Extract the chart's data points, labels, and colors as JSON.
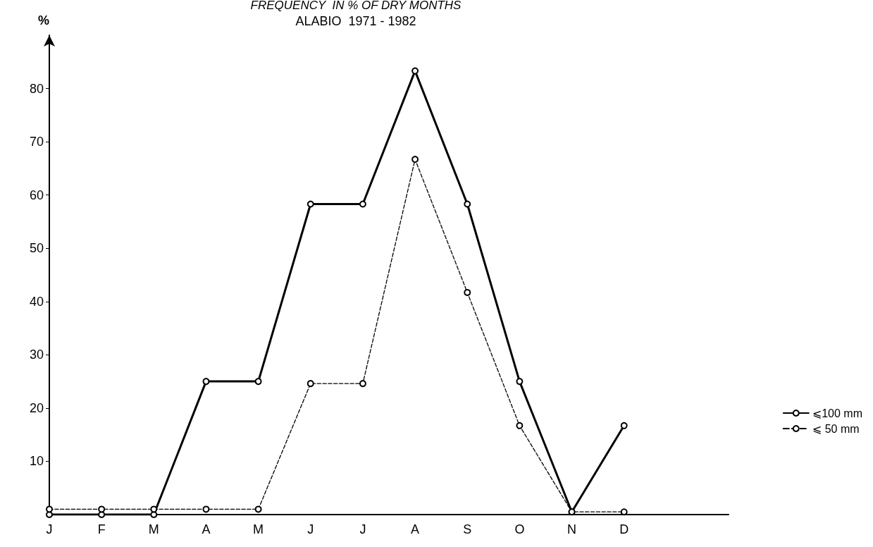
{
  "chart_data": {
    "type": "line",
    "title": "FREQUENCY  IN % OF DRY MONTHS",
    "subtitle": "ALABIO  1971 - 1982",
    "ylabel": "%",
    "categories": [
      "J",
      "F",
      "M",
      "A",
      "M",
      "J",
      "J",
      "A",
      "S",
      "O",
      "N",
      "D",
      null,
      null
    ],
    "series": [
      {
        "name": "⩽100 mm",
        "color": "#000000",
        "line_style": "solid",
        "values": [
          0,
          0,
          0,
          25,
          25,
          58.3,
          58.3,
          83.3,
          58.3,
          25,
          0.5,
          16.7,
          null,
          null
        ]
      },
      {
        "name": "⩽ 50 mm",
        "color": "#000000",
        "line_style": "dashed",
        "values": [
          1,
          1,
          1,
          1,
          1,
          24.6,
          24.6,
          66.7,
          41.7,
          16.7,
          0.5,
          0.5,
          null,
          null
        ]
      }
    ],
    "ylim": [
      0,
      90
    ],
    "yticks": [
      10,
      20,
      30,
      40,
      50,
      60,
      70,
      80
    ],
    "grid": false,
    "legend": "bottom right",
    "marker": "circle"
  }
}
